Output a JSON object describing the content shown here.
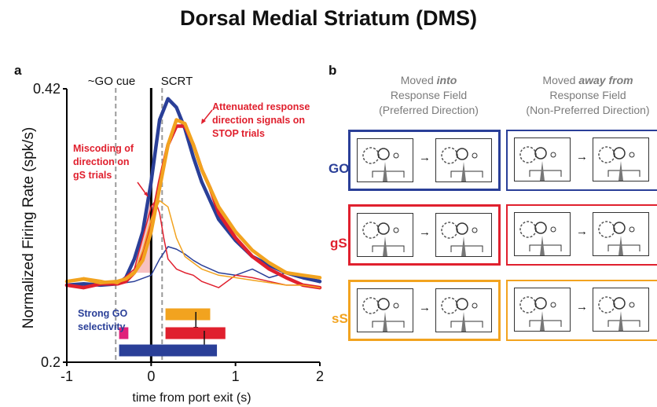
{
  "figure_title": "Dorsal Medial Striatum (DMS)",
  "panel_a": {
    "letter": "a",
    "go_cue_label": "~GO cue",
    "scrt_label": "SCRT",
    "ann_miscoding": [
      "Miscoding of",
      "direction on",
      "gS trials"
    ],
    "ann_attenuated": [
      "Attenuated response",
      "direction signals on",
      "STOP trials"
    ],
    "ann_strong": [
      "Strong GO",
      "selectivity"
    ]
  },
  "panel_b": {
    "letter": "b",
    "col1_header": {
      "line1_pre": "Moved ",
      "line1_em": "into",
      "line2": "Response Field",
      "line3": "(Preferred Direction)"
    },
    "col2_header": {
      "line1_pre": "Moved ",
      "line1_em": "away from",
      "line2": "Response Field",
      "line3": "(Non-Preferred Direction)"
    },
    "rows": [
      {
        "label": "GO",
        "color": "#2a3f98"
      },
      {
        "label": "gS",
        "color": "#e0202e"
      },
      {
        "label": "sS",
        "color": "#f2a31f"
      }
    ]
  },
  "chart_data": {
    "type": "line",
    "title": "",
    "xlabel": "time from port exit (s)",
    "ylabel": "Normalized Firing Rate (spk/s)",
    "xlim": [
      -1,
      2
    ],
    "ylim": [
      0.2,
      0.42
    ],
    "xticks": [
      -1,
      0,
      1,
      2
    ],
    "yticks": [
      0.2,
      0.42
    ],
    "vlines": [
      {
        "x": -0.42,
        "style": "dashed",
        "label": "~GO cue"
      },
      {
        "x": 0.0,
        "style": "solid"
      },
      {
        "x": 0.13,
        "style": "dashed",
        "label": "SCRT"
      }
    ],
    "grid": false,
    "series": [
      {
        "color": "#2a3f98",
        "width": 4.5,
        "x": [
          -1,
          -0.8,
          -0.6,
          -0.4,
          -0.3,
          -0.2,
          -0.1,
          0,
          0.1,
          0.2,
          0.3,
          0.4,
          0.5,
          0.6,
          0.7,
          0.8,
          1.0,
          1.2,
          1.4,
          1.6,
          1.8,
          2.0
        ],
        "y": [
          0.262,
          0.263,
          0.262,
          0.263,
          0.268,
          0.283,
          0.305,
          0.345,
          0.395,
          0.412,
          0.405,
          0.388,
          0.365,
          0.345,
          0.33,
          0.315,
          0.298,
          0.285,
          0.278,
          0.272,
          0.268,
          0.265
        ]
      },
      {
        "color": "#2a3f98",
        "width": 1.5,
        "x": [
          -1,
          -0.8,
          -0.6,
          -0.4,
          -0.2,
          0,
          0.1,
          0.2,
          0.3,
          0.4,
          0.5,
          0.6,
          0.8,
          1.0,
          1.2,
          1.4,
          1.6,
          1.8,
          2.0
        ],
        "y": [
          0.262,
          0.261,
          0.262,
          0.263,
          0.265,
          0.27,
          0.283,
          0.293,
          0.291,
          0.287,
          0.282,
          0.278,
          0.272,
          0.27,
          0.275,
          0.268,
          0.272,
          0.268,
          0.264
        ]
      },
      {
        "color": "#e0202e",
        "width": 4.5,
        "x": [
          -1,
          -0.8,
          -0.6,
          -0.4,
          -0.3,
          -0.2,
          -0.1,
          0,
          0.1,
          0.2,
          0.3,
          0.4,
          0.5,
          0.6,
          0.7,
          0.8,
          1.0,
          1.2,
          1.4,
          1.6,
          1.8,
          2.0
        ],
        "y": [
          0.262,
          0.26,
          0.263,
          0.263,
          0.265,
          0.272,
          0.285,
          0.31,
          0.345,
          0.375,
          0.39,
          0.39,
          0.375,
          0.355,
          0.34,
          0.32,
          0.3,
          0.285,
          0.275,
          0.268,
          0.262,
          0.26
        ]
      },
      {
        "color": "#e0202e",
        "width": 1.5,
        "x": [
          -1,
          -0.8,
          -0.6,
          -0.4,
          -0.2,
          -0.1,
          0,
          0.05,
          0.1,
          0.15,
          0.2,
          0.3,
          0.4,
          0.5,
          0.6,
          0.8,
          1.0,
          1.2,
          1.4,
          1.6,
          1.8,
          2.0
        ],
        "y": [
          0.262,
          0.26,
          0.262,
          0.263,
          0.275,
          0.3,
          0.325,
          0.33,
          0.32,
          0.3,
          0.283,
          0.275,
          0.272,
          0.27,
          0.265,
          0.26,
          0.27,
          0.268,
          0.265,
          0.262,
          0.262,
          0.26
        ]
      },
      {
        "color": "#f2a31f",
        "width": 4.5,
        "x": [
          -1,
          -0.8,
          -0.6,
          -0.4,
          -0.3,
          -0.2,
          -0.1,
          0,
          0.1,
          0.2,
          0.3,
          0.4,
          0.5,
          0.6,
          0.7,
          0.8,
          1.0,
          1.2,
          1.4,
          1.6,
          1.8,
          2.0
        ],
        "y": [
          0.265,
          0.267,
          0.264,
          0.265,
          0.267,
          0.272,
          0.282,
          0.305,
          0.34,
          0.375,
          0.395,
          0.392,
          0.375,
          0.355,
          0.34,
          0.325,
          0.305,
          0.29,
          0.28,
          0.272,
          0.27,
          0.268
        ]
      },
      {
        "color": "#f2a31f",
        "width": 1.5,
        "x": [
          -1,
          -0.8,
          -0.6,
          -0.4,
          -0.2,
          -0.1,
          0,
          0.1,
          0.2,
          0.3,
          0.4,
          0.5,
          0.6,
          0.8,
          1.0,
          1.2,
          1.4,
          1.6,
          1.8,
          2.0
        ],
        "y": [
          0.265,
          0.268,
          0.266,
          0.263,
          0.272,
          0.29,
          0.315,
          0.33,
          0.325,
          0.3,
          0.285,
          0.28,
          0.275,
          0.27,
          0.268,
          0.266,
          0.264,
          0.262,
          0.262,
          0.26
        ]
      }
    ],
    "shading": {
      "color": "#f3a0a0",
      "x": [
        -0.2,
        0.0
      ]
    },
    "bars": [
      {
        "color": "#f2a31f",
        "x_start": 0.17,
        "x_end": 0.7,
        "tick": 0.53
      },
      {
        "color": "#e0207a",
        "x_start": -0.38,
        "x_end": -0.27
      },
      {
        "color": "#e0202e",
        "x_start": 0.17,
        "x_end": 0.88,
        "tick": 0.63
      },
      {
        "color": "#2a3f98",
        "x_start": -0.38,
        "x_end": 0.78
      }
    ]
  }
}
